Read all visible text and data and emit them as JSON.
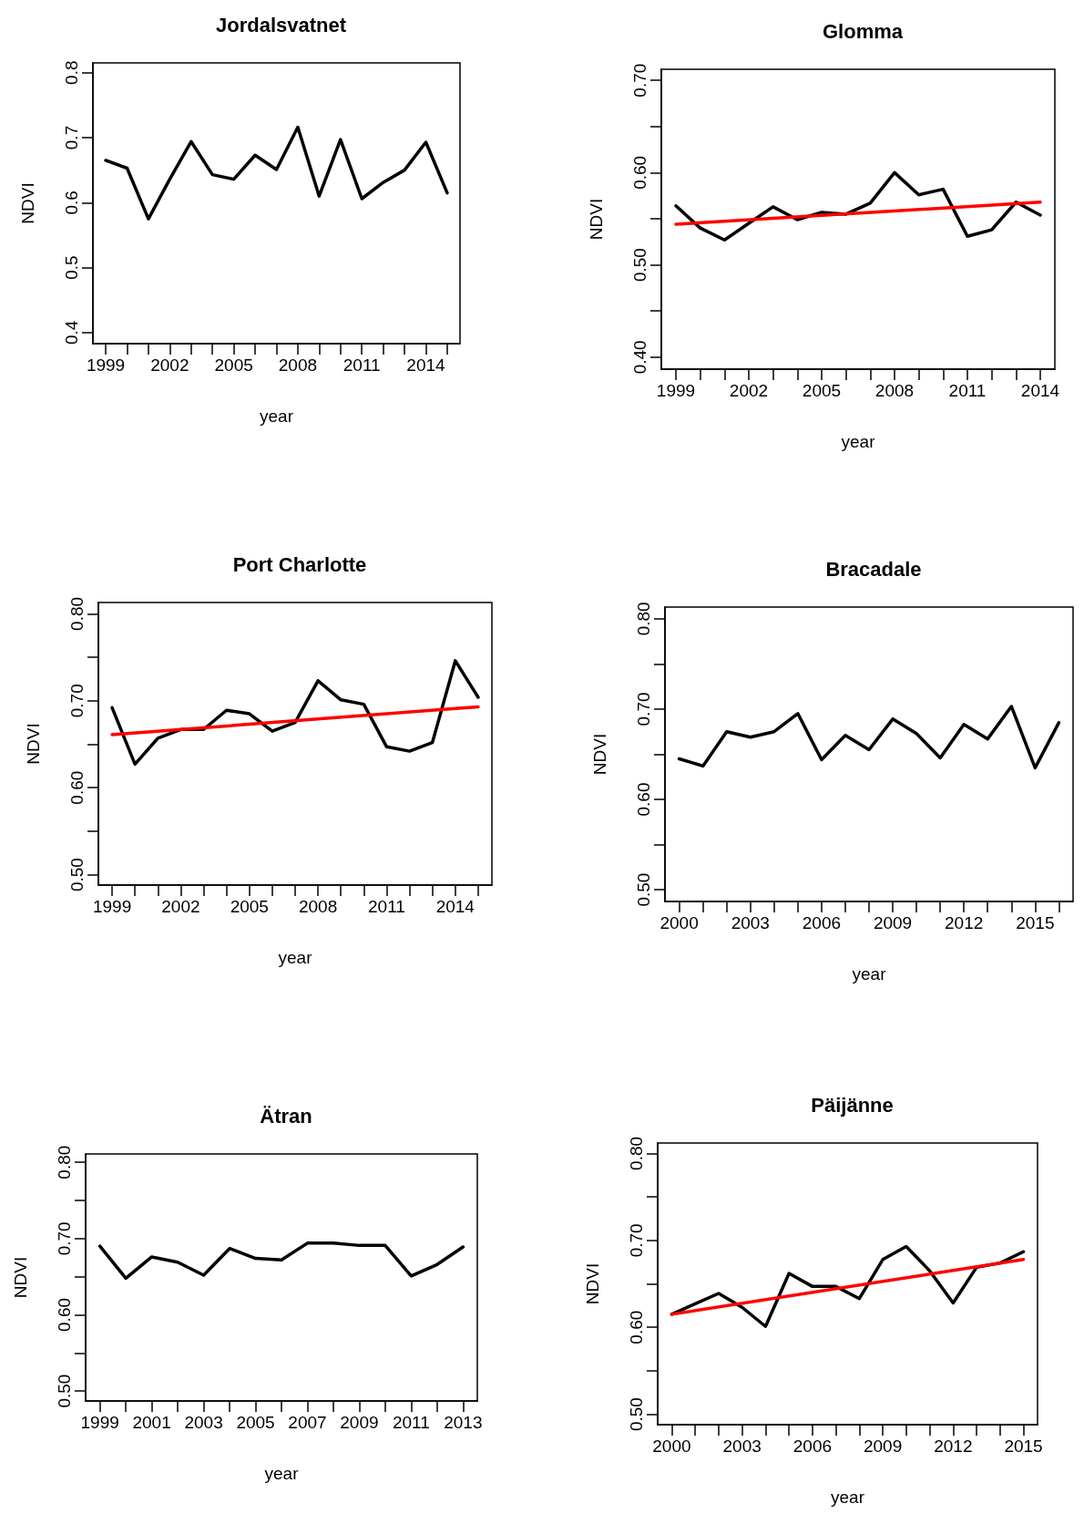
{
  "chart_data": [
    {
      "type": "line",
      "title": "Jordalsvatnet",
      "xlabel": "year",
      "ylabel": "NDVI",
      "marker": "none",
      "xlim": [
        1998.4,
        2015.6
      ],
      "ylim": [
        0.383,
        0.815
      ],
      "x": [
        1999,
        2000,
        2001,
        2002,
        2003,
        2004,
        2005,
        2006,
        2007,
        2008,
        2009,
        2010,
        2011,
        2012,
        2013,
        2014,
        2015
      ],
      "xticks": [
        1999,
        {
          "value": 2000,
          "label": null
        },
        {
          "value": 2001,
          "label": null
        },
        2002,
        {
          "value": 2003,
          "label": null
        },
        {
          "value": 2004,
          "label": null
        },
        2005,
        {
          "value": 2006,
          "label": null
        },
        {
          "value": 2007,
          "label": null
        },
        2008,
        {
          "value": 2009,
          "label": null
        },
        {
          "value": 2010,
          "label": null
        },
        2011,
        {
          "value": 2012,
          "label": null
        },
        {
          "value": 2013,
          "label": null
        },
        2014,
        {
          "value": 2015,
          "label": null
        }
      ],
      "yticks": [
        0.4,
        0.5,
        0.6,
        0.7,
        0.8
      ],
      "series": [
        {
          "color": "#000000",
          "values": [
            0.665,
            0.653,
            0.575,
            0.636,
            0.694,
            0.643,
            0.636,
            0.673,
            0.651,
            0.716,
            0.61,
            0.697,
            0.606,
            0.631,
            0.65,
            0.693,
            0.615
          ]
        }
      ]
    },
    {
      "type": "line",
      "title": "Glomma",
      "xlabel": "year",
      "ylabel": "NDVI",
      "marker": "none",
      "xlim": [
        1998.4,
        2014.6
      ],
      "ylim": [
        0.387,
        0.712
      ],
      "x": [
        1999,
        2000,
        2001,
        2002,
        2003,
        2004,
        2005,
        2006,
        2007,
        2008,
        2009,
        2010,
        2011,
        2012,
        2013,
        2014
      ],
      "xticks": [
        1999,
        {
          "value": 2000,
          "label": null
        },
        {
          "value": 2001,
          "label": null
        },
        2002,
        {
          "value": 2003,
          "label": null
        },
        {
          "value": 2004,
          "label": null
        },
        2005,
        {
          "value": 2006,
          "label": null
        },
        {
          "value": 2007,
          "label": null
        },
        2008,
        {
          "value": 2009,
          "label": null
        },
        {
          "value": 2010,
          "label": null
        },
        2011,
        {
          "value": 2012,
          "label": null
        },
        {
          "value": 2013,
          "label": null
        },
        2014
      ],
      "yticks": [
        {
          "value": 0.4,
          "label": "0.40"
        },
        {
          "value": 0.45,
          "label": null
        },
        {
          "value": 0.5,
          "label": "0.50"
        },
        {
          "value": 0.55,
          "label": null
        },
        {
          "value": 0.6,
          "label": "0.60"
        },
        {
          "value": 0.65,
          "label": null
        },
        {
          "value": 0.7,
          "label": "0.70"
        }
      ],
      "series": [
        {
          "color": "#000000",
          "values": [
            0.564,
            0.54,
            0.527,
            0.545,
            0.563,
            0.549,
            0.557,
            0.555,
            0.567,
            0.6,
            0.576,
            0.582,
            0.531,
            0.538,
            0.568,
            0.554
          ]
        },
        {
          "color": "#ff0000",
          "x": [
            1999,
            2014
          ],
          "values": [
            0.544,
            0.568
          ]
        }
      ]
    },
    {
      "type": "line",
      "title": "Port Charlotte",
      "xlabel": "year",
      "ylabel": "NDVI",
      "marker": "none",
      "xlim": [
        1998.4,
        2015.6
      ],
      "ylim": [
        0.488,
        0.813
      ],
      "x": [
        1999,
        2000,
        2001,
        2002,
        2003,
        2004,
        2005,
        2006,
        2007,
        2008,
        2009,
        2010,
        2011,
        2012,
        2013,
        2014,
        2015
      ],
      "xticks": [
        1999,
        {
          "value": 2000,
          "label": null
        },
        {
          "value": 2001,
          "label": null
        },
        2002,
        {
          "value": 2003,
          "label": null
        },
        {
          "value": 2004,
          "label": null
        },
        2005,
        {
          "value": 2006,
          "label": null
        },
        {
          "value": 2007,
          "label": null
        },
        2008,
        {
          "value": 2009,
          "label": null
        },
        {
          "value": 2010,
          "label": null
        },
        2011,
        {
          "value": 2012,
          "label": null
        },
        {
          "value": 2013,
          "label": null
        },
        2014,
        {
          "value": 2015,
          "label": null
        }
      ],
      "yticks": [
        {
          "value": 0.5,
          "label": "0.50"
        },
        {
          "value": 0.55,
          "label": null
        },
        {
          "value": 0.6,
          "label": "0.60"
        },
        {
          "value": 0.65,
          "label": null
        },
        {
          "value": 0.7,
          "label": "0.70"
        },
        {
          "value": 0.75,
          "label": null
        },
        {
          "value": 0.8,
          "label": "0.80"
        }
      ],
      "series": [
        {
          "color": "#000000",
          "values": [
            0.692,
            0.627,
            0.657,
            0.667,
            0.667,
            0.689,
            0.685,
            0.665,
            0.675,
            0.723,
            0.701,
            0.696,
            0.647,
            0.642,
            0.652,
            0.746,
            0.704
          ]
        },
        {
          "color": "#ff0000",
          "x": [
            1999,
            2015
          ],
          "values": [
            0.661,
            0.693
          ]
        }
      ]
    },
    {
      "type": "line",
      "title": "Bracadale",
      "xlabel": "year",
      "ylabel": "NDVI",
      "marker": "none",
      "xlim": [
        1999.4,
        2016.6
      ],
      "ylim": [
        0.487,
        0.813
      ],
      "x": [
        2000,
        2001,
        2002,
        2003,
        2004,
        2005,
        2006,
        2007,
        2008,
        2009,
        2010,
        2011,
        2012,
        2013,
        2014,
        2015,
        2016
      ],
      "xticks": [
        2000,
        {
          "value": 2001,
          "label": null
        },
        {
          "value": 2002,
          "label": null
        },
        2003,
        {
          "value": 2004,
          "label": null
        },
        {
          "value": 2005,
          "label": null
        },
        2006,
        {
          "value": 2007,
          "label": null
        },
        {
          "value": 2008,
          "label": null
        },
        2009,
        {
          "value": 2010,
          "label": null
        },
        {
          "value": 2011,
          "label": null
        },
        2012,
        {
          "value": 2013,
          "label": null
        },
        {
          "value": 2014,
          "label": null
        },
        2015,
        {
          "value": 2016,
          "label": null
        }
      ],
      "yticks": [
        {
          "value": 0.5,
          "label": "0.50"
        },
        {
          "value": 0.55,
          "label": null
        },
        {
          "value": 0.6,
          "label": "0.60"
        },
        {
          "value": 0.65,
          "label": null
        },
        {
          "value": 0.7,
          "label": "0.70"
        },
        {
          "value": 0.75,
          "label": null
        },
        {
          "value": 0.8,
          "label": "0.80"
        }
      ],
      "series": [
        {
          "color": "#000000",
          "values": [
            0.645,
            0.637,
            0.675,
            0.669,
            0.675,
            0.695,
            0.644,
            0.671,
            0.655,
            0.689,
            0.673,
            0.646,
            0.683,
            0.667,
            0.703,
            0.635,
            0.685
          ]
        }
      ]
    },
    {
      "type": "line",
      "title": "Ätran",
      "xlabel": "year",
      "ylabel": "NDVI",
      "marker": "none",
      "xlim": [
        1998.45,
        2013.55
      ],
      "ylim": [
        0.487,
        0.811
      ],
      "x": [
        1999,
        2000,
        2001,
        2002,
        2003,
        2004,
        2005,
        2006,
        2007,
        2008,
        2009,
        2010,
        2011,
        2012,
        2013
      ],
      "xticks": [
        1999,
        {
          "value": 2000,
          "label": null
        },
        2001,
        {
          "value": 2002,
          "label": null
        },
        2003,
        {
          "value": 2004,
          "label": null
        },
        2005,
        {
          "value": 2006,
          "label": null
        },
        2007,
        {
          "value": 2008,
          "label": null
        },
        2009,
        {
          "value": 2010,
          "label": null
        },
        2011,
        {
          "value": 2012,
          "label": null
        },
        2013
      ],
      "yticks": [
        {
          "value": 0.5,
          "label": "0.50"
        },
        {
          "value": 0.55,
          "label": null
        },
        {
          "value": 0.6,
          "label": "0.60"
        },
        {
          "value": 0.65,
          "label": null
        },
        {
          "value": 0.7,
          "label": "0.70"
        },
        {
          "value": 0.75,
          "label": null
        },
        {
          "value": 0.8,
          "label": "0.80"
        }
      ],
      "series": [
        {
          "color": "#000000",
          "values": [
            0.69,
            0.648,
            0.676,
            0.669,
            0.652,
            0.687,
            0.674,
            0.672,
            0.694,
            0.694,
            0.691,
            0.691,
            0.651,
            0.666,
            0.689
          ]
        }
      ]
    },
    {
      "type": "line",
      "title": "Päijänne",
      "xlabel": "year",
      "ylabel": "NDVI",
      "marker": "none",
      "xlim": [
        1999.4,
        2015.6
      ],
      "ylim": [
        0.488,
        0.812
      ],
      "x": [
        2000,
        2001,
        2002,
        2003,
        2004,
        2005,
        2006,
        2007,
        2008,
        2009,
        2010,
        2011,
        2012,
        2013,
        2014,
        2015
      ],
      "xticks": [
        2000,
        {
          "value": 2001,
          "label": null
        },
        {
          "value": 2002,
          "label": null
        },
        2003,
        {
          "value": 2004,
          "label": null
        },
        {
          "value": 2005,
          "label": null
        },
        2006,
        {
          "value": 2007,
          "label": null
        },
        {
          "value": 2008,
          "label": null
        },
        2009,
        {
          "value": 2010,
          "label": null
        },
        {
          "value": 2011,
          "label": null
        },
        2012,
        {
          "value": 2013,
          "label": null
        },
        {
          "value": 2014,
          "label": null
        },
        2015
      ],
      "yticks": [
        {
          "value": 0.5,
          "label": "0.50"
        },
        {
          "value": 0.55,
          "label": null
        },
        {
          "value": 0.6,
          "label": "0.60"
        },
        {
          "value": 0.65,
          "label": null
        },
        {
          "value": 0.7,
          "label": "0.70"
        },
        {
          "value": 0.75,
          "label": null
        },
        {
          "value": 0.8,
          "label": "0.80"
        }
      ],
      "series": [
        {
          "color": "#000000",
          "values": [
            0.615,
            0.627,
            0.639,
            0.623,
            0.601,
            0.662,
            0.647,
            0.647,
            0.633,
            0.678,
            0.693,
            0.665,
            0.628,
            0.669,
            0.674,
            0.687
          ]
        },
        {
          "color": "#ff0000",
          "x": [
            2000,
            2015
          ],
          "values": [
            0.615,
            0.678
          ]
        }
      ]
    }
  ]
}
